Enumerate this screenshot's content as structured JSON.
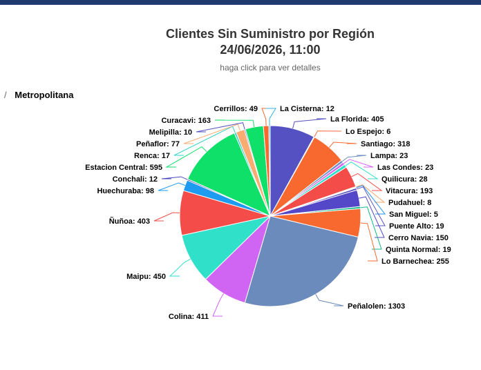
{
  "header": {
    "accent_color": "#1f3a6e"
  },
  "chart_data": {
    "type": "pie",
    "title_lines": [
      "Clientes Sin Suministro por Región",
      "24/06/2026, 11:00"
    ],
    "subtitle": "haga click para ver detalles",
    "breadcrumb": {
      "separator": "/",
      "current": "Metropolitana"
    },
    "slices": [
      {
        "name": "La Florida",
        "value": 405,
        "color": "#5651c3",
        "label": "La Florida: 405"
      },
      {
        "name": "Lo Espejo",
        "value": 6,
        "color": "#fb6e3b",
        "label": "Lo Espejo: 6"
      },
      {
        "name": "Santiago",
        "value": 318,
        "color": "#f7692f",
        "label": "Santiago: 318"
      },
      {
        "name": "Lampa",
        "value": 23,
        "color": "#6e8fc1",
        "label": "Lampa: 23"
      },
      {
        "name": "Las Condes",
        "value": 23,
        "color": "#d662f2",
        "label": "Las Condes: 23"
      },
      {
        "name": "Quilicura",
        "value": 28,
        "color": "#2ee0c9",
        "label": "Quilicura: 28"
      },
      {
        "name": "Vitacura",
        "value": 193,
        "color": "#f44c48",
        "label": "Vitacura: 193"
      },
      {
        "name": "Pudahuel",
        "value": 8,
        "color": "#f8a66b",
        "label": "Pudahuel: 8"
      },
      {
        "name": "San Miguel",
        "value": 5,
        "color": "#1f8ff0",
        "label": "San Miguel: 5"
      },
      {
        "name": "Puente Alto",
        "value": 19,
        "color": "#5651c3",
        "label": "Puente Alto: 19"
      },
      {
        "name": "Cerro Navia",
        "value": 150,
        "color": "#5448c8",
        "label": "Cerro Navia: 150"
      },
      {
        "name": "Quinta Normal",
        "value": 19,
        "color": "#12b98a",
        "label": "Quinta Normal: 19"
      },
      {
        "name": "Lo Barnechea",
        "value": 255,
        "color": "#f7692f",
        "label": "Lo Barnechea: 255"
      },
      {
        "name": "Peñalolen",
        "value": 1303,
        "color": "#6b8bbd",
        "label": "Peñalolen: 1303"
      },
      {
        "name": "Colina",
        "value": 411,
        "color": "#d065f4",
        "label": "Colina: 411"
      },
      {
        "name": "Maipu",
        "value": 450,
        "color": "#30e0c8",
        "label": "Maipu: 450"
      },
      {
        "name": "Ñuñoa",
        "value": 403,
        "color": "#f44c48",
        "label": "Ñuñoa: 403"
      },
      {
        "name": "Huechuraba",
        "value": 98,
        "color": "#1d9bf0",
        "label": "Huechuraba: 98"
      },
      {
        "name": "Conchali",
        "value": 12,
        "color": "#4b45bc",
        "label": "Conchali: 12"
      },
      {
        "name": "Estacion Central",
        "value": 595,
        "color": "#0ee06a",
        "label": "Estacion Central: 595"
      },
      {
        "name": "Renca",
        "value": 17,
        "color": "#2dd1c4",
        "label": "Renca: 17"
      },
      {
        "name": "Peñaflor",
        "value": 77,
        "color": "#f8ac72",
        "label": "Peñaflor: 77"
      },
      {
        "name": "Melipilla",
        "value": 10,
        "color": "#5651c3",
        "label": "Melipilla: 10"
      },
      {
        "name": "Curacavi",
        "value": 163,
        "color": "#0ee06a",
        "label": "Curacavi: 163"
      },
      {
        "name": "Cerrillos",
        "value": 49,
        "color": "#f7692f",
        "label": "Cerrillos: 49"
      },
      {
        "name": "La Cisterna",
        "value": 12,
        "color": "#30b6e0",
        "label": "La Cisterna: 12"
      }
    ]
  }
}
